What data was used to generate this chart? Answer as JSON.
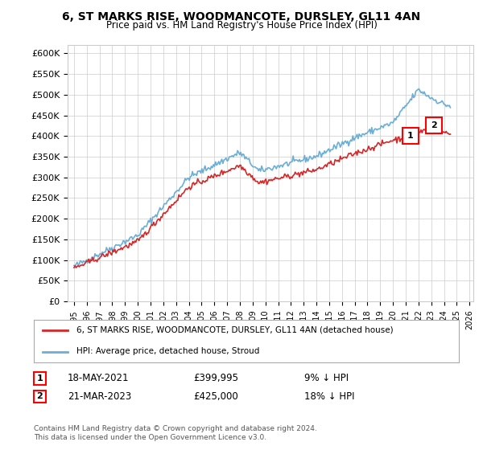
{
  "title": "6, ST MARKS RISE, WOODMANCOTE, DURSLEY, GL11 4AN",
  "subtitle": "Price paid vs. HM Land Registry's House Price Index (HPI)",
  "ylabel_ticks": [
    "£0",
    "£50K",
    "£100K",
    "£150K",
    "£200K",
    "£250K",
    "£300K",
    "£350K",
    "£400K",
    "£450K",
    "£500K",
    "£550K",
    "£600K"
  ],
  "ytick_values": [
    0,
    50000,
    100000,
    150000,
    200000,
    250000,
    300000,
    350000,
    400000,
    450000,
    500000,
    550000,
    600000
  ],
  "ylim": [
    0,
    620000
  ],
  "xlim_start": 1995,
  "xlim_end": 2026,
  "xticks": [
    1995,
    1996,
    1997,
    1998,
    1999,
    2000,
    2001,
    2002,
    2003,
    2004,
    2005,
    2006,
    2007,
    2008,
    2009,
    2010,
    2011,
    2012,
    2013,
    2014,
    2015,
    2016,
    2017,
    2018,
    2019,
    2020,
    2021,
    2022,
    2023,
    2024,
    2025,
    2026
  ],
  "hpi_color": "#6baed6",
  "price_color": "#d62728",
  "marker1_x": 2021.38,
  "marker1_y": 399995,
  "marker2_x": 2023.22,
  "marker2_y": 425000,
  "legend_line1": "6, ST MARKS RISE, WOODMANCOTE, DURSLEY, GL11 4AN (detached house)",
  "legend_line2": "HPI: Average price, detached house, Stroud",
  "annotation1_num": "1",
  "annotation1_date": "18-MAY-2021",
  "annotation1_price": "£399,995",
  "annotation1_hpi": "9% ↓ HPI",
  "annotation2_num": "2",
  "annotation2_date": "21-MAR-2023",
  "annotation2_price": "£425,000",
  "annotation2_hpi": "18% ↓ HPI",
  "footer": "Contains HM Land Registry data © Crown copyright and database right 2024.\nThis data is licensed under the Open Government Licence v3.0.",
  "bg_color": "#ffffff",
  "grid_color": "#cccccc"
}
